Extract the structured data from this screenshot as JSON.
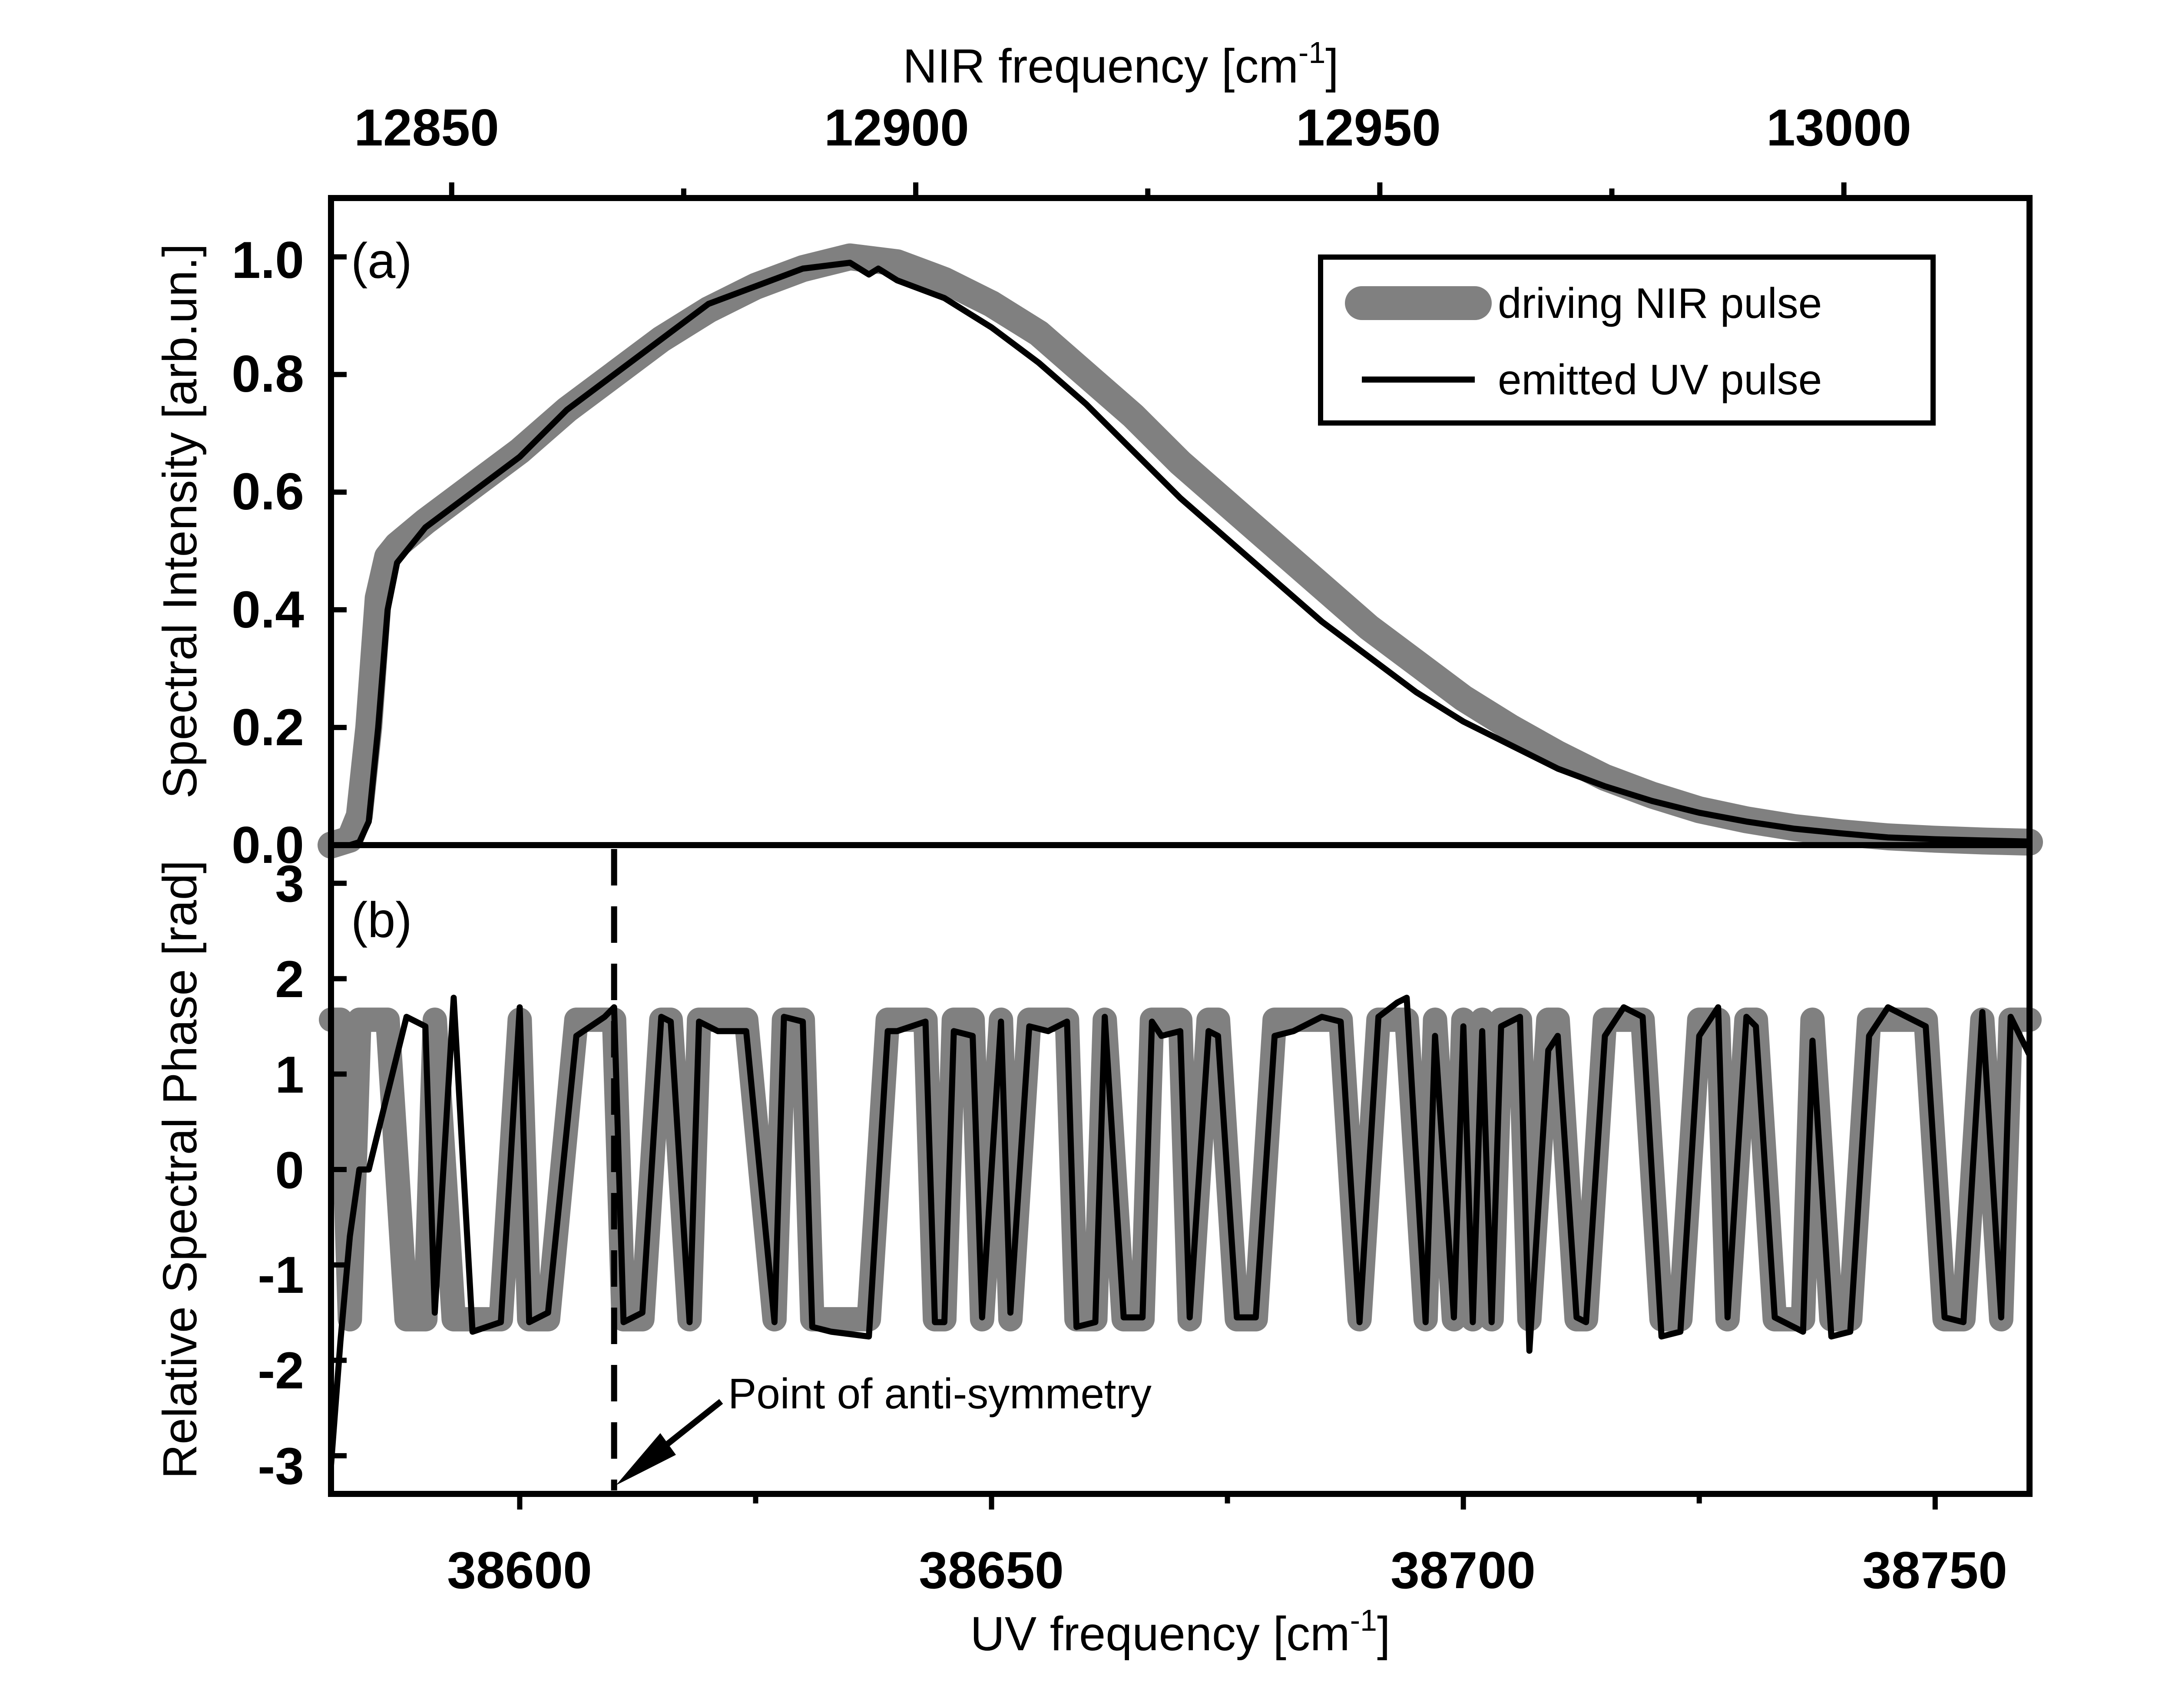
{
  "chart_data": [
    {
      "panel": "(a)",
      "type": "line",
      "title": "",
      "top_xlabel": "NIR frequency [cm",
      "top_xlabel_sup": "-1",
      "top_xlabel_end": "]",
      "top_xlim": [
        12837,
        13020
      ],
      "top_xticks": [
        12850,
        12900,
        12950,
        13000
      ],
      "top_xtick_labels": [
        "12850",
        "12900",
        "12950",
        "13000"
      ],
      "top_minor_xticks": [
        12875,
        12925,
        12975
      ],
      "xlim": [
        38580,
        38760
      ],
      "ylabel": "Spectral Intensity [arb.un.]",
      "ylim": [
        0.0,
        1.1
      ],
      "yticks": [
        0.0,
        0.2,
        0.4,
        0.6,
        0.8,
        1.0
      ],
      "ytick_labels": [
        "0.0",
        "0.2",
        "0.4",
        "0.6",
        "0.8",
        "1.0"
      ],
      "legend": {
        "placement": "top-right",
        "entries": [
          "driving NIR pulse",
          "emitted UV pulse"
        ]
      },
      "series": [
        {
          "name": "driving NIR pulse",
          "color": "#808080",
          "x": [
            38580,
            38582,
            38583,
            38584,
            38585,
            38586,
            38587,
            38590,
            38595,
            38600,
            38605,
            38610,
            38615,
            38620,
            38625,
            38630,
            38635,
            38640,
            38645,
            38650,
            38655,
            38660,
            38665,
            38670,
            38675,
            38680,
            38685,
            38690,
            38695,
            38700,
            38705,
            38710,
            38715,
            38720,
            38725,
            38730,
            38735,
            38740,
            38745,
            38750,
            38755,
            38760
          ],
          "y": [
            0.0,
            0.01,
            0.05,
            0.2,
            0.42,
            0.49,
            0.51,
            0.55,
            0.61,
            0.67,
            0.74,
            0.8,
            0.86,
            0.91,
            0.95,
            0.98,
            1.0,
            0.99,
            0.96,
            0.92,
            0.87,
            0.8,
            0.73,
            0.65,
            0.58,
            0.51,
            0.44,
            0.37,
            0.31,
            0.25,
            0.2,
            0.155,
            0.115,
            0.085,
            0.06,
            0.043,
            0.03,
            0.021,
            0.014,
            0.01,
            0.007,
            0.005
          ]
        },
        {
          "name": "emitted UV pulse",
          "color": "#000000",
          "x": [
            38580,
            38582,
            38583,
            38584,
            38585,
            38586,
            38587,
            38590,
            38595,
            38600,
            38605,
            38610,
            38615,
            38620,
            38625,
            38630,
            38635,
            38636,
            38637,
            38638,
            38640,
            38645,
            38650,
            38655,
            38660,
            38665,
            38670,
            38675,
            38680,
            38685,
            38690,
            38695,
            38700,
            38705,
            38710,
            38715,
            38720,
            38725,
            38730,
            38735,
            38740,
            38745,
            38750,
            38755,
            38760
          ],
          "y": [
            0.0,
            0.0,
            0.005,
            0.04,
            0.2,
            0.4,
            0.48,
            0.54,
            0.6,
            0.66,
            0.74,
            0.8,
            0.86,
            0.92,
            0.95,
            0.98,
            0.99,
            0.98,
            0.97,
            0.98,
            0.96,
            0.93,
            0.88,
            0.82,
            0.75,
            0.67,
            0.59,
            0.52,
            0.45,
            0.38,
            0.32,
            0.26,
            0.21,
            0.17,
            0.13,
            0.1,
            0.075,
            0.055,
            0.04,
            0.028,
            0.02,
            0.013,
            0.01,
            0.008,
            0.006
          ]
        }
      ]
    },
    {
      "panel": "(b)",
      "type": "line",
      "title": "",
      "xlabel": "UV frequency [cm",
      "xlabel_sup": "-1",
      "xlabel_end": "]",
      "xlim": [
        38580,
        38760
      ],
      "xticks": [
        38600,
        38650,
        38700,
        38750
      ],
      "xtick_labels": [
        "38600",
        "38650",
        "38700",
        "38750"
      ],
      "minor_xticks": [
        38625,
        38675,
        38725
      ],
      "ylabel": "Relative Spectral Phase [rad]",
      "ylim": [
        -3.4,
        3.4
      ],
      "yticks": [
        -3,
        -2,
        -1,
        0,
        1,
        2,
        3
      ],
      "ytick_labels": [
        "-3",
        "-2",
        "-1",
        "0",
        "1",
        "2",
        "3"
      ],
      "annotation": {
        "text": "Point of anti-symmetry",
        "x": 38610
      },
      "series": [
        {
          "name": "driving NIR pulse",
          "color": "#808080",
          "x": [
            38580,
            38581,
            38582,
            38583,
            38584,
            38586,
            38588,
            38590,
            38591,
            38593,
            38595,
            38598,
            38600,
            38601,
            38603,
            38606,
            38609,
            38610,
            38611,
            38613,
            38615,
            38616,
            38618,
            38619,
            38621,
            38624,
            38627,
            38628,
            38630,
            38631,
            38633,
            38637,
            38639,
            38640,
            38643,
            38644,
            38645,
            38646,
            38648,
            38649,
            38651,
            38652,
            38654,
            38656,
            38658,
            38659,
            38661,
            38662,
            38664,
            38666,
            38667,
            38668,
            38670,
            38671,
            38673,
            38674,
            38676,
            38678,
            38680,
            38682,
            38685,
            38687,
            38689,
            38691,
            38693,
            38694,
            38696,
            38697,
            38699,
            38700,
            38701,
            38702,
            38703,
            38704,
            38706,
            38707,
            38709,
            38710,
            38712,
            38713,
            38715,
            38717,
            38719,
            38721,
            38723,
            38725,
            38727,
            38728,
            38730,
            38731,
            38733,
            38734,
            38736,
            38737,
            38739,
            38741,
            38743,
            38745,
            38747,
            38749,
            38751,
            38753,
            38755,
            38757,
            38758,
            38760
          ],
          "y": [
            1.57,
            1.57,
            -1.57,
            1.57,
            1.57,
            1.57,
            -1.57,
            -1.57,
            1.57,
            -1.57,
            -1.57,
            -1.57,
            1.57,
            -1.57,
            -1.57,
            1.57,
            1.57,
            1.57,
            -1.57,
            -1.57,
            1.57,
            1.57,
            -1.57,
            1.57,
            1.57,
            1.57,
            -1.57,
            1.57,
            1.57,
            -1.57,
            -1.57,
            -1.57,
            1.57,
            1.57,
            1.57,
            -1.57,
            -1.57,
            1.57,
            1.57,
            -1.57,
            1.57,
            -1.57,
            1.57,
            1.57,
            1.57,
            -1.57,
            -1.57,
            1.57,
            -1.57,
            -1.57,
            1.57,
            1.57,
            1.57,
            -1.57,
            1.57,
            1.57,
            -1.57,
            -1.57,
            1.57,
            1.57,
            1.57,
            1.57,
            -1.57,
            1.57,
            1.57,
            1.57,
            -1.57,
            1.57,
            -1.57,
            1.57,
            -1.57,
            1.57,
            -1.57,
            1.57,
            1.57,
            -1.57,
            1.57,
            1.57,
            -1.57,
            -1.57,
            1.57,
            1.57,
            1.57,
            -1.57,
            -1.57,
            1.57,
            1.57,
            -1.57,
            1.57,
            1.57,
            -1.57,
            -1.57,
            -1.57,
            1.57,
            -1.57,
            -1.57,
            1.57,
            1.57,
            1.57,
            1.57,
            -1.57,
            -1.57,
            1.57,
            -1.57,
            1.57,
            1.57
          ]
        },
        {
          "name": "emitted UV pulse",
          "color": "#000000",
          "x": [
            38580,
            38581,
            38582,
            38583,
            38584,
            38586,
            38588,
            38590,
            38591,
            38593,
            38595,
            38598,
            38600,
            38601,
            38603,
            38606,
            38609,
            38610,
            38611,
            38613,
            38615,
            38616,
            38618,
            38619,
            38621,
            38624,
            38627,
            38628,
            38630,
            38631,
            38633,
            38637,
            38639,
            38640,
            38643,
            38644,
            38645,
            38646,
            38648,
            38649,
            38651,
            38652,
            38654,
            38656,
            38658,
            38659,
            38661,
            38662,
            38664,
            38666,
            38667,
            38668,
            38670,
            38671,
            38673,
            38674,
            38676,
            38678,
            38680,
            38682,
            38685,
            38687,
            38689,
            38691,
            38693,
            38694,
            38696,
            38697,
            38699,
            38700,
            38701,
            38702,
            38703,
            38704,
            38706,
            38707,
            38709,
            38710,
            38712,
            38713,
            38715,
            38717,
            38719,
            38721,
            38723,
            38725,
            38727,
            38728,
            38730,
            38731,
            38733,
            38734,
            38736,
            38737,
            38739,
            38741,
            38743,
            38745,
            38747,
            38749,
            38751,
            38753,
            38755,
            38757,
            38758,
            38760
          ],
          "y": [
            -3.1,
            -1.8,
            -0.7,
            0.0,
            0.0,
            0.8,
            1.6,
            1.5,
            -1.5,
            1.8,
            -1.7,
            -1.6,
            1.7,
            -1.6,
            -1.5,
            1.4,
            1.6,
            1.7,
            -1.6,
            -1.5,
            1.6,
            1.55,
            -1.6,
            1.55,
            1.45,
            1.45,
            -1.6,
            1.6,
            1.55,
            -1.65,
            -1.7,
            -1.75,
            1.45,
            1.45,
            1.55,
            -1.6,
            -1.6,
            1.45,
            1.4,
            -1.55,
            1.55,
            -1.5,
            1.5,
            1.45,
            1.55,
            -1.65,
            -1.6,
            1.6,
            -1.55,
            -1.55,
            1.55,
            1.4,
            1.45,
            -1.55,
            1.45,
            1.4,
            -1.55,
            -1.55,
            1.4,
            1.45,
            1.6,
            1.55,
            -1.6,
            1.6,
            1.75,
            1.8,
            -1.6,
            1.4,
            -1.55,
            1.5,
            -1.6,
            1.45,
            -1.6,
            1.5,
            1.6,
            -1.9,
            1.25,
            1.4,
            -1.55,
            -1.6,
            1.4,
            1.7,
            1.6,
            -1.75,
            -1.7,
            1.4,
            1.7,
            -1.55,
            1.6,
            1.5,
            -1.55,
            -1.6,
            -1.7,
            1.35,
            -1.75,
            -1.7,
            1.4,
            1.7,
            1.6,
            1.5,
            -1.55,
            -1.6,
            1.65,
            -1.55,
            1.6,
            1.2
          ]
        }
      ]
    }
  ]
}
